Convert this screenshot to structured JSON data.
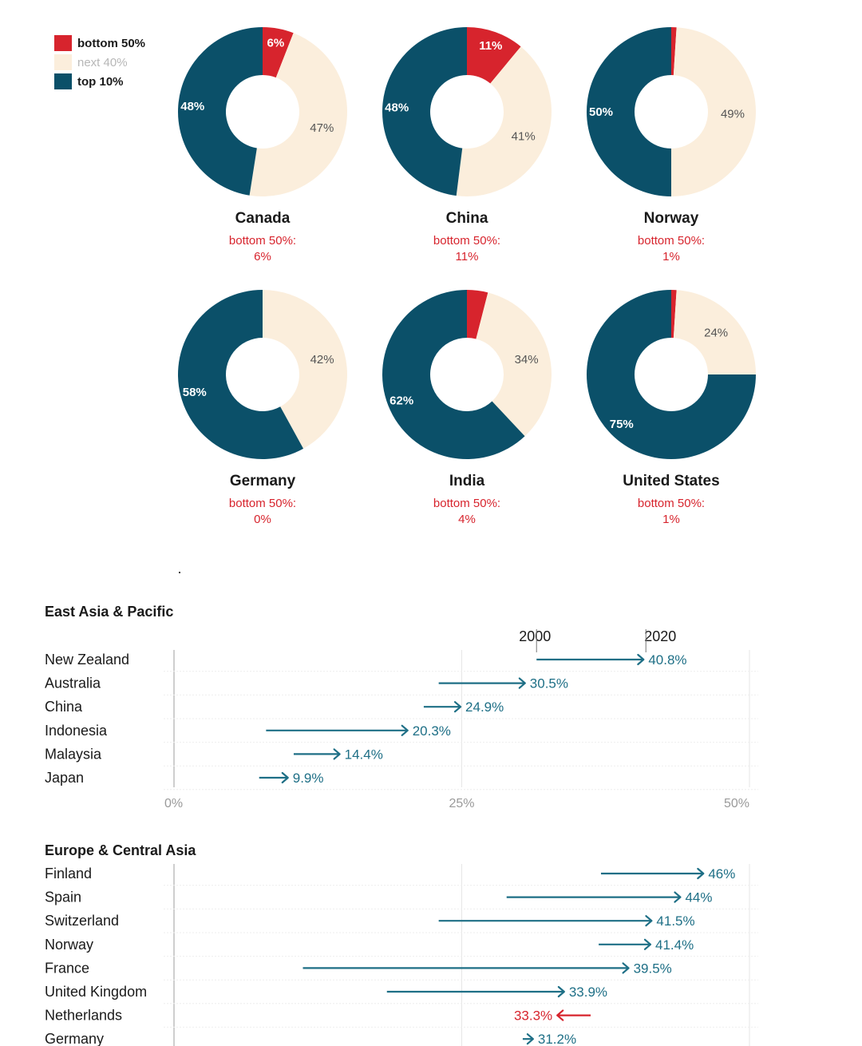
{
  "legend": [
    {
      "label": "bottom 50%",
      "color": "#d7242d"
    },
    {
      "label": "next 40%",
      "color": "#fbeedc"
    },
    {
      "label": "top 10%",
      "color": "#0b5069"
    }
  ],
  "colors": {
    "bottom": "#d7242d",
    "next": "#fbeedc",
    "top": "#0b5069",
    "increase": "#1e6f86",
    "decrease": "#d7242d"
  },
  "donut_caption_prefix": "bottom 50%:",
  "dot": ".",
  "chart_data": [
    {
      "type": "pie",
      "variant": "donut",
      "segments_order": [
        "bottom 50%",
        "next 40%",
        "top 10%"
      ],
      "series": [
        {
          "name": "Canada",
          "values": [
            6,
            47,
            48
          ],
          "labels": [
            "6%",
            "47%",
            "48%"
          ],
          "caption": "6%"
        },
        {
          "name": "China",
          "values": [
            11,
            41,
            48
          ],
          "labels": [
            "11%",
            "41%",
            "48%"
          ],
          "caption": "11%"
        },
        {
          "name": "Norway",
          "values": [
            1,
            49,
            50
          ],
          "labels": [
            "",
            "49%",
            "50%"
          ],
          "caption": "1%"
        },
        {
          "name": "Germany",
          "values": [
            0,
            42,
            58
          ],
          "labels": [
            "",
            "42%",
            "58%"
          ],
          "caption": "0%"
        },
        {
          "name": "India",
          "values": [
            4,
            34,
            62
          ],
          "labels": [
            "",
            "34%",
            "62%"
          ],
          "caption": "4%"
        },
        {
          "name": "United States",
          "values": [
            1,
            24,
            75
          ],
          "labels": [
            "",
            "24%",
            "75%"
          ],
          "caption": "1%"
        }
      ]
    },
    {
      "type": "arrow",
      "groups": [
        {
          "title": "East Asia & Pacific",
          "header_labels": {
            "start": "2000",
            "end": "2020",
            "start_value": 31.5,
            "end_value": 41.0
          },
          "rows": [
            {
              "country": "New Zealand",
              "start": 31.5,
              "end": 40.8,
              "label": "40.8%"
            },
            {
              "country": "Australia",
              "start": 23.0,
              "end": 30.5,
              "label": "30.5%"
            },
            {
              "country": "China",
              "start": 21.7,
              "end": 24.9,
              "label": "24.9%"
            },
            {
              "country": "Indonesia",
              "start": 8.0,
              "end": 20.3,
              "label": "20.3%"
            },
            {
              "country": "Malaysia",
              "start": 10.4,
              "end": 14.4,
              "label": "14.4%"
            },
            {
              "country": "Japan",
              "start": 7.4,
              "end": 9.9,
              "label": "9.9%"
            }
          ],
          "x_ticks": [
            "0%",
            "25%",
            "50%"
          ]
        },
        {
          "title": "Europe & Central Asia",
          "rows": [
            {
              "country": "Finland",
              "start": 37.1,
              "end": 46.0,
              "label": "46%"
            },
            {
              "country": "Spain",
              "start": 28.9,
              "end": 44.0,
              "label": "44%"
            },
            {
              "country": "Switzerland",
              "start": 23.0,
              "end": 41.5,
              "label": "41.5%"
            },
            {
              "country": "Norway",
              "start": 36.9,
              "end": 41.4,
              "label": "41.4%"
            },
            {
              "country": "France",
              "start": 11.2,
              "end": 39.5,
              "label": "39.5%"
            },
            {
              "country": "United Kingdom",
              "start": 18.5,
              "end": 33.9,
              "label": "33.9%"
            },
            {
              "country": "Netherlands",
              "start": 36.2,
              "end": 33.3,
              "label": "33.3%"
            },
            {
              "country": "Germany",
              "start": 30.3,
              "end": 31.2,
              "label": "31.2%"
            }
          ]
        }
      ],
      "xlim": [
        0,
        50
      ]
    }
  ]
}
